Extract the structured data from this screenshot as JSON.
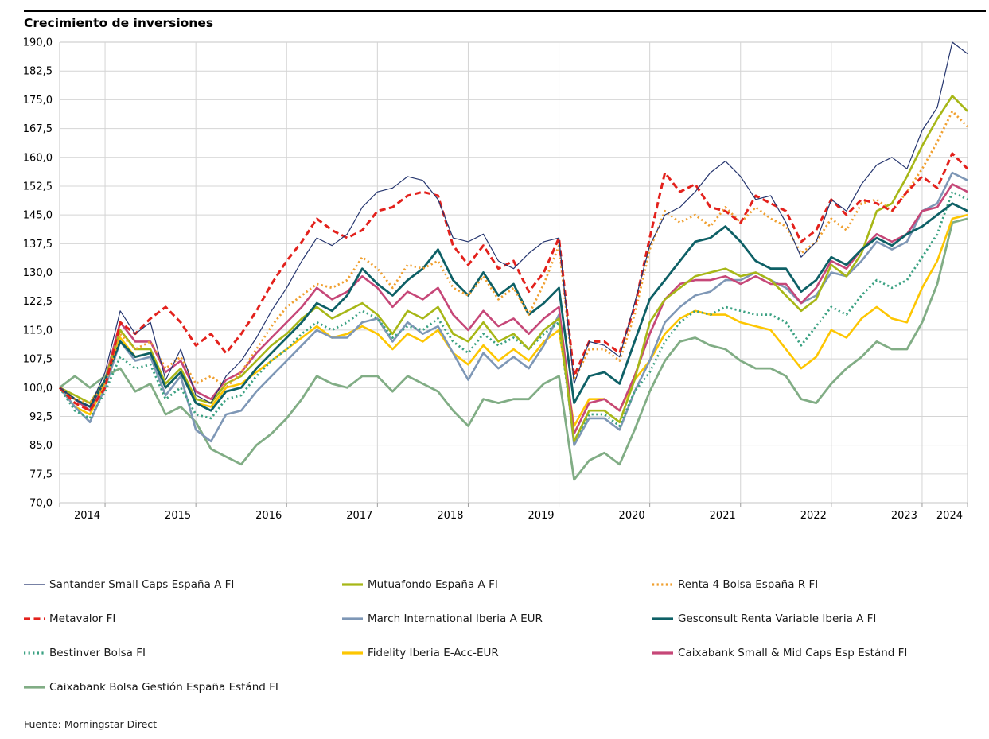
{
  "title": "Crecimiento de inversiones",
  "source": "Fuente: Morningstar Direct",
  "chart_data": {
    "type": "line",
    "title": "Crecimiento de inversiones",
    "grid": true,
    "legend_position": "bottom",
    "start_value": 100,
    "ylim": [
      70,
      190
    ],
    "y_tick_values": [
      190,
      182.5,
      175,
      167.5,
      160,
      152.5,
      145,
      137.5,
      130,
      122.5,
      115,
      107.5,
      100,
      92.5,
      85,
      77.5,
      70
    ],
    "y_tick_labels": [
      "190,0",
      "182,5",
      "175,0",
      "167,5",
      "160,0",
      "152,5",
      "145,0",
      "137,5",
      "130,0",
      "122,5",
      "115,0",
      "107,5",
      "100,0",
      "92,5",
      "85,0",
      "77,5",
      "70,0"
    ],
    "x_year_labels": [
      "2014",
      "2015",
      "2016",
      "2017",
      "2018",
      "2019",
      "2020",
      "2021",
      "2022",
      "2023",
      "2024"
    ],
    "x_range": [
      2014.5,
      2024.5
    ],
    "x": [
      2014.5,
      2014.667,
      2014.833,
      2015.0,
      2015.167,
      2015.333,
      2015.5,
      2015.667,
      2015.833,
      2016.0,
      2016.167,
      2016.333,
      2016.5,
      2016.667,
      2016.833,
      2017.0,
      2017.167,
      2017.333,
      2017.5,
      2017.667,
      2017.833,
      2018.0,
      2018.167,
      2018.333,
      2018.5,
      2018.667,
      2018.833,
      2019.0,
      2019.167,
      2019.333,
      2019.5,
      2019.667,
      2019.833,
      2020.0,
      2020.167,
      2020.333,
      2020.5,
      2020.667,
      2020.833,
      2021.0,
      2021.167,
      2021.333,
      2021.5,
      2021.667,
      2021.833,
      2022.0,
      2022.167,
      2022.333,
      2022.5,
      2022.667,
      2022.833,
      2023.0,
      2023.167,
      2023.333,
      2023.5,
      2023.667,
      2023.833,
      2024.0,
      2024.167,
      2024.333,
      2024.5
    ],
    "series": [
      {
        "key": "santander",
        "label": "Santander Small Caps España A FI",
        "color": "#26366f",
        "style": "solid",
        "width": 1.2,
        "values": [
          100,
          97,
          95,
          104,
          120,
          114,
          117,
          102,
          110,
          98,
          96,
          103,
          107,
          113,
          120,
          126,
          133,
          139,
          137,
          140,
          147,
          151,
          152,
          155,
          154,
          149,
          139,
          138,
          140,
          133,
          131,
          135,
          138,
          139,
          101,
          112,
          111,
          108,
          122,
          137,
          145,
          147,
          151,
          156,
          159,
          155,
          149,
          150,
          143,
          134,
          138,
          149,
          146,
          153,
          158,
          160,
          157,
          167,
          173,
          190,
          187
        ]
      },
      {
        "key": "mutuafondo",
        "label": "Mutuafondo España A FI",
        "color": "#a7b717",
        "style": "solid",
        "width": 2.6,
        "values": [
          100,
          98,
          96,
          102,
          115,
          110,
          110,
          101,
          105,
          97,
          96,
          101,
          103,
          107,
          111,
          114,
          118,
          121,
          118,
          120,
          122,
          119,
          114,
          120,
          118,
          121,
          114,
          112,
          117,
          112,
          114,
          110,
          115,
          118,
          86,
          94,
          94,
          91,
          102,
          117,
          123,
          126,
          129,
          130,
          131,
          129,
          130,
          128,
          124,
          120,
          123,
          132,
          129,
          135,
          146,
          148,
          155,
          163,
          170,
          176,
          172
        ]
      },
      {
        "key": "renta4",
        "label": "Renta 4 Bolsa España R FI",
        "color": "#f0a030",
        "style": "dot",
        "width": 2.8,
        "values": [
          100,
          97,
          96,
          101,
          114,
          110,
          112,
          105,
          108,
          101,
          103,
          100,
          104,
          110,
          116,
          121,
          124,
          127,
          126,
          128,
          134,
          131,
          126,
          132,
          131,
          133,
          126,
          124,
          129,
          123,
          126,
          119,
          127,
          137,
          102,
          110,
          110,
          107,
          119,
          136,
          146,
          143,
          145,
          142,
          147,
          143,
          147,
          144,
          142,
          135,
          138,
          144,
          141,
          148,
          149,
          146,
          151,
          157,
          164,
          172,
          168
        ]
      },
      {
        "key": "metavalor",
        "label": "Metavalor FI",
        "color": "#e3211c",
        "style": "dash",
        "width": 3,
        "values": [
          100,
          96,
          94,
          100,
          117,
          114,
          118,
          121,
          117,
          111,
          114,
          109,
          114,
          120,
          127,
          133,
          138,
          144,
          141,
          139,
          141,
          146,
          147,
          150,
          151,
          150,
          137,
          132,
          137,
          131,
          133,
          125,
          130,
          139,
          103,
          112,
          112,
          109,
          121,
          139,
          156,
          151,
          153,
          147,
          146,
          143,
          150,
          148,
          146,
          138,
          141,
          149,
          145,
          149,
          148,
          146,
          151,
          155,
          152,
          161,
          157
        ]
      },
      {
        "key": "march",
        "label": "March International Iberia A EUR",
        "color": "#7e97b6",
        "style": "solid",
        "width": 2.6,
        "values": [
          100,
          95,
          91,
          100,
          112,
          107,
          108,
          98,
          103,
          89,
          86,
          93,
          94,
          99,
          103,
          107,
          111,
          115,
          113,
          113,
          117,
          118,
          112,
          117,
          114,
          116,
          109,
          102,
          109,
          105,
          108,
          105,
          111,
          119,
          85,
          92,
          92,
          89,
          99,
          107,
          117,
          121,
          124,
          125,
          128,
          128,
          130,
          128,
          126,
          122,
          124,
          130,
          129,
          133,
          138,
          136,
          138,
          146,
          148,
          156,
          154
        ]
      },
      {
        "key": "gesconsult",
        "label": "Gesconsult Renta Variable Iberia A FI",
        "color": "#0e6066",
        "style": "solid",
        "width": 2.8,
        "values": [
          100,
          97,
          95,
          102,
          112,
          108,
          109,
          100,
          104,
          96,
          94,
          99,
          100,
          105,
          109,
          113,
          117,
          122,
          120,
          124,
          131,
          127,
          124,
          128,
          131,
          136,
          128,
          124,
          130,
          124,
          127,
          119,
          122,
          126,
          96,
          103,
          104,
          101,
          112,
          123,
          128,
          133,
          138,
          139,
          142,
          138,
          133,
          131,
          131,
          125,
          128,
          134,
          132,
          136,
          139,
          137,
          140,
          142,
          145,
          148,
          146
        ]
      },
      {
        "key": "bestinver",
        "label": "Bestinver Bolsa FI",
        "color": "#3ba182",
        "style": "dot",
        "width": 2.8,
        "values": [
          100,
          94,
          92,
          99,
          108,
          105,
          106,
          97,
          100,
          93,
          92,
          97,
          98,
          103,
          107,
          110,
          114,
          117,
          115,
          117,
          120,
          118,
          113,
          116,
          115,
          118,
          112,
          109,
          114,
          111,
          113,
          110,
          114,
          117,
          86,
          93,
          93,
          90,
          99,
          104,
          112,
          117,
          120,
          119,
          121,
          120,
          119,
          119,
          117,
          111,
          116,
          121,
          119,
          124,
          128,
          126,
          128,
          134,
          140,
          151,
          149
        ]
      },
      {
        "key": "fidelity",
        "label": "Fidelity Iberia E-Acc-EUR",
        "color": "#fdc602",
        "style": "solid",
        "width": 2.6,
        "values": [
          100,
          95,
          93,
          101,
          113,
          108,
          109,
          100,
          104,
          96,
          95,
          100,
          101,
          104,
          107,
          110,
          113,
          116,
          113,
          114,
          116,
          114,
          110,
          114,
          112,
          115,
          109,
          106,
          111,
          107,
          110,
          107,
          112,
          115,
          90,
          97,
          97,
          94,
          102,
          107,
          114,
          118,
          120,
          119,
          119,
          117,
          116,
          115,
          110,
          105,
          108,
          115,
          113,
          118,
          121,
          118,
          117,
          126,
          133,
          144,
          145
        ]
      },
      {
        "key": "caixabank_smc",
        "label": "Caixabank Small & Mid Caps Esp Estánd FI",
        "color": "#c64778",
        "style": "solid",
        "width": 2.6,
        "values": [
          100,
          97,
          94,
          102,
          117,
          112,
          112,
          104,
          107,
          99,
          97,
          102,
          104,
          109,
          113,
          117,
          121,
          126,
          123,
          125,
          129,
          126,
          121,
          125,
          123,
          126,
          119,
          115,
          120,
          116,
          118,
          114,
          118,
          121,
          88,
          96,
          97,
          94,
          103,
          114,
          123,
          127,
          128,
          128,
          129,
          127,
          129,
          127,
          127,
          122,
          126,
          133,
          131,
          136,
          140,
          138,
          140,
          146,
          147,
          153,
          151
        ]
      },
      {
        "key": "caixabank_bg",
        "label": "Caixabank Bolsa Gestión España Estánd FI",
        "color": "#81ad85",
        "style": "solid",
        "width": 2.8,
        "values": [
          100,
          103,
          100,
          103,
          105,
          99,
          101,
          93,
          95,
          91,
          84,
          82,
          80,
          85,
          88,
          92,
          97,
          103,
          101,
          100,
          103,
          103,
          99,
          103,
          101,
          99,
          94,
          90,
          97,
          96,
          97,
          97,
          101,
          103,
          76,
          81,
          83,
          80,
          89,
          99,
          107,
          112,
          113,
          111,
          110,
          107,
          105,
          105,
          103,
          97,
          96,
          101,
          105,
          108,
          112,
          110,
          110,
          117,
          127,
          143,
          144
        ]
      }
    ]
  }
}
